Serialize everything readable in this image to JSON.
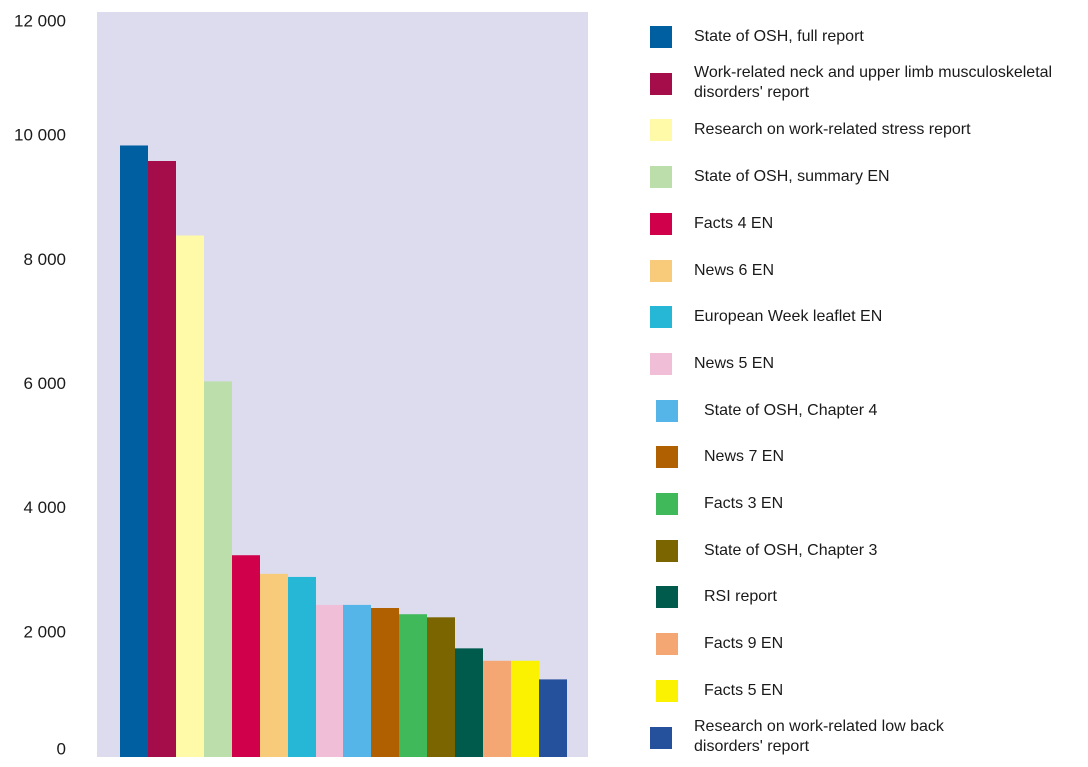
{
  "chart_data": {
    "type": "bar",
    "title": "",
    "xlabel": "",
    "ylabel": "",
    "ylim": [
      0,
      12000
    ],
    "y_ticks": [
      "0",
      "2 000",
      "4 000",
      "6 000",
      "8 000",
      "10 000",
      "12 000"
    ],
    "y_tick_values": [
      0,
      2000,
      4000,
      6000,
      8000,
      10000,
      12000
    ],
    "grid": false,
    "plot_background": "#dcdcee",
    "legend_position": "right",
    "categories": [
      "State of OSH, full report",
      "Work-related neck and upper limb musculoskeletal disorders' report",
      "Research on work-related stress report",
      "State of OSH, summary EN",
      "Facts 4 EN",
      "News 6 EN",
      "European Week leaflet EN",
      "News 5 EN",
      "State of OSH, Chapter 4",
      "News 7 EN",
      "Facts 3 EN",
      "State of OSH, Chapter 3",
      "RSI report",
      "Facts 9 EN",
      "Facts 5 EN",
      "Research on work-related low back disorders' report"
    ],
    "values": [
      9850,
      9600,
      8400,
      6050,
      3250,
      2950,
      2900,
      2450,
      2450,
      2400,
      2300,
      2250,
      1750,
      1550,
      1550,
      1250
    ],
    "colors": [
      "#005fa0",
      "#a50d4a",
      "#fffaa8",
      "#bcdeaa",
      "#d0004b",
      "#f8cb7a",
      "#27b7d6",
      "#f1bed8",
      "#55b5e8",
      "#b06000",
      "#40b95b",
      "#7a6500",
      "#005b4d",
      "#f4a673",
      "#faf200",
      "#25509c"
    ]
  },
  "legend": {
    "items": [
      {
        "line1": "State of OSH, full report",
        "line2": ""
      },
      {
        "line1": "Work-related neck and upper limb musculoskeletal",
        "line2": "disorders' report"
      },
      {
        "line1": "Research on work-related stress report",
        "line2": ""
      },
      {
        "line1": "State of OSH, summary EN",
        "line2": ""
      },
      {
        "line1": "Facts 4 EN",
        "line2": ""
      },
      {
        "line1": "News 6 EN",
        "line2": ""
      },
      {
        "line1": "European Week leaflet EN",
        "line2": ""
      },
      {
        "line1": "News 5 EN",
        "line2": ""
      },
      {
        "line1": "State of OSH, Chapter 4",
        "line2": ""
      },
      {
        "line1": "News 7 EN",
        "line2": ""
      },
      {
        "line1": "Facts 3 EN",
        "line2": ""
      },
      {
        "line1": "State of OSH, Chapter 3",
        "line2": ""
      },
      {
        "line1": "RSI report",
        "line2": ""
      },
      {
        "line1": "Facts 9 EN",
        "line2": ""
      },
      {
        "line1": "Facts 5 EN",
        "line2": ""
      },
      {
        "line1": "Research on work-related low back",
        "line2": "disorders' report"
      }
    ]
  }
}
